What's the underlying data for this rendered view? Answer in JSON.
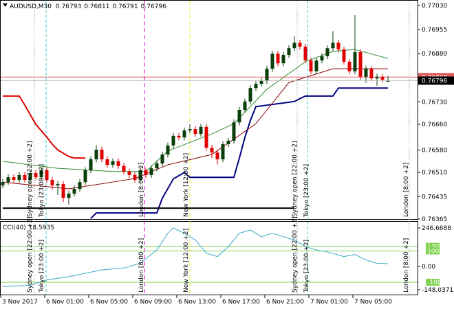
{
  "chart_data": {
    "type": "candlestick",
    "symbol": "AUDUSD,M30",
    "up_color": "#0a3f0a",
    "down_color": "#e00000",
    "open": [
      0.7647,
      0.7648,
      0.76495,
      0.76487,
      0.76502,
      0.76487,
      0.76508,
      0.76495,
      0.76517,
      0.76487,
      0.7647,
      0.76474,
      0.76431,
      0.76444,
      0.76459,
      0.7648,
      0.76517,
      0.76551,
      0.76581,
      0.76551,
      0.76534,
      0.76545,
      0.7653,
      0.76513,
      0.76502,
      0.76487,
      0.76517,
      0.76502,
      0.76523,
      0.76538,
      0.76566,
      0.76594,
      0.76624,
      0.76619,
      0.76641,
      0.76645,
      0.7663,
      0.76652,
      0.76587,
      0.76572,
      0.76551,
      0.76598,
      0.76609,
      0.76666,
      0.76705,
      0.76731,
      0.76773,
      0.76786,
      0.76795,
      0.76833,
      0.7688,
      0.7685,
      0.76876,
      0.76897,
      0.76914,
      0.76902,
      0.76859,
      0.76825,
      0.76859,
      0.76872,
      0.76897,
      0.76914,
      0.76893,
      0.76855,
      0.76825,
      0.76885,
      0.76808,
      0.76833,
      0.76803,
      0.76808,
      0.76793
    ],
    "high": [
      0.76489,
      0.76504,
      0.76504,
      0.76511,
      0.76511,
      0.76517,
      0.76517,
      0.76526,
      0.76526,
      0.76496,
      0.76483,
      0.76483,
      0.76453,
      0.7647,
      0.76489,
      0.76526,
      0.7656,
      0.76595,
      0.7659,
      0.7656,
      0.76554,
      0.76554,
      0.76539,
      0.76522,
      0.76511,
      0.76526,
      0.76526,
      0.76532,
      0.76547,
      0.76575,
      0.76603,
      0.76633,
      0.76633,
      0.7665,
      0.7666,
      0.76654,
      0.76661,
      0.76661,
      0.76596,
      0.76581,
      0.76607,
      0.76618,
      0.76675,
      0.76714,
      0.7674,
      0.76782,
      0.76795,
      0.76804,
      0.76842,
      0.76889,
      0.76889,
      0.76885,
      0.76906,
      0.76935,
      0.76923,
      0.76911,
      0.76868,
      0.76868,
      0.76881,
      0.76906,
      0.7695,
      0.76923,
      0.76902,
      0.76864,
      0.77,
      0.76894,
      0.76842,
      0.76842,
      0.76817,
      0.76817,
      0.76811
    ],
    "low": [
      0.76461,
      0.76471,
      0.76478,
      0.76478,
      0.76478,
      0.76478,
      0.76486,
      0.76486,
      0.76478,
      0.76455,
      0.7644,
      0.76418,
      0.7641,
      0.76435,
      0.7645,
      0.76471,
      0.76508,
      0.76542,
      0.76542,
      0.76525,
      0.76525,
      0.76521,
      0.76504,
      0.76493,
      0.76478,
      0.76478,
      0.76493,
      0.76493,
      0.76514,
      0.76529,
      0.76557,
      0.76585,
      0.7661,
      0.7661,
      0.76632,
      0.76621,
      0.76621,
      0.76578,
      0.76555,
      0.76535,
      0.76542,
      0.76589,
      0.766,
      0.76657,
      0.76696,
      0.76722,
      0.76764,
      0.76777,
      0.76786,
      0.76824,
      0.76841,
      0.76841,
      0.76867,
      0.76888,
      0.76893,
      0.7685,
      0.76816,
      0.76816,
      0.7685,
      0.76863,
      0.76888,
      0.76884,
      0.76846,
      0.76816,
      0.76816,
      0.76799,
      0.7679,
      0.76794,
      0.7678,
      0.7679,
      0.76791
    ],
    "close": [
      0.7648,
      0.76495,
      0.76487,
      0.76502,
      0.76487,
      0.76508,
      0.76495,
      0.76517,
      0.76487,
      0.7647,
      0.76474,
      0.76431,
      0.76444,
      0.76459,
      0.7648,
      0.76517,
      0.76551,
      0.76581,
      0.76551,
      0.76534,
      0.76545,
      0.7653,
      0.76513,
      0.76502,
      0.76487,
      0.76517,
      0.76502,
      0.76523,
      0.76538,
      0.76566,
      0.76594,
      0.76624,
      0.76619,
      0.76641,
      0.76645,
      0.7663,
      0.76652,
      0.76587,
      0.76572,
      0.76551,
      0.76598,
      0.76609,
      0.76666,
      0.76705,
      0.76731,
      0.76773,
      0.76786,
      0.76795,
      0.76833,
      0.7688,
      0.7685,
      0.76876,
      0.76897,
      0.76914,
      0.76902,
      0.76859,
      0.76825,
      0.76859,
      0.76872,
      0.76897,
      0.76914,
      0.76893,
      0.76855,
      0.76825,
      0.76885,
      0.76808,
      0.76833,
      0.76803,
      0.76808,
      0.76799,
      0.76796
    ],
    "ylim": [
      0.76365,
      0.7703
    ],
    "yticks": [
      {
        "value": 0.7703,
        "label": "0.77030"
      },
      0.76955,
      {
        "value": 0.7688,
        "label": "0.76880"
      },
      {
        "value": 0.7673,
        "label": "0.76730"
      },
      {
        "value": 0.7666,
        "label": "0.76660"
      },
      {
        "value": 0.7658,
        "label": "0.76580"
      },
      {
        "value": 0.7651,
        "label": "0.76510"
      },
      0.76435,
      0.76365
    ],
    "x_labels": [
      "3 Nov 2017",
      "6 Nov 01:00",
      "6 Nov 05:00",
      "6 Nov 09:00",
      "6 Nov 13:00",
      "6 Nov 17:00",
      "6 Nov 21:00",
      "7 Nov 01:00",
      "7 Nov 05:00"
    ],
    "ask_line": {
      "value": 0.76807,
      "color": "#e05a5a"
    },
    "overlays": [
      {
        "color": "#e00000",
        "width": 2,
        "x": [
          0,
          3,
          4,
          5,
          6,
          7,
          8,
          9,
          10,
          11,
          12,
          13,
          15
        ],
        "values": [
          0.76748,
          0.76748,
          0.7672,
          0.7669,
          0.7666,
          0.7664,
          0.7662,
          0.76598,
          0.7658,
          0.7657,
          0.7656,
          0.76555,
          0.76555
        ]
      },
      {
        "color": "#000080",
        "width": 2,
        "x": [
          16,
          17,
          28,
          29,
          30,
          31,
          32,
          33,
          34,
          42,
          43,
          44,
          45,
          46,
          53,
          54,
          55,
          60,
          61,
          70
        ],
        "values": [
          0.76367,
          0.76384,
          0.76384,
          0.7643,
          0.7646,
          0.7649,
          0.765,
          0.7651,
          0.76495,
          0.76495,
          0.76555,
          0.76619,
          0.76672,
          0.76715,
          0.76731,
          0.7674,
          0.76748,
          0.76748,
          0.76773,
          0.76773
        ]
      },
      {
        "color": "#000000",
        "width": 2,
        "x": [
          0,
          53
        ],
        "values": [
          0.76399,
          0.76399
        ]
      },
      {
        "color": "#2e8b2e",
        "width": 1,
        "x": [
          0,
          10,
          20,
          26,
          30,
          38,
          42,
          48,
          55,
          60,
          64,
          70
        ],
        "values": [
          0.76545,
          0.76523,
          0.76513,
          0.76513,
          0.76577,
          0.7663,
          0.76662,
          0.76769,
          0.76855,
          0.76887,
          0.76893,
          0.76865
        ]
      },
      {
        "color": "#8b0000",
        "width": 1,
        "x": [
          0,
          12,
          24,
          30,
          38,
          46,
          52,
          60,
          70
        ],
        "values": [
          0.7648,
          0.76459,
          0.76491,
          0.76534,
          0.76566,
          0.76662,
          0.7679,
          0.76833,
          0.76833
        ]
      }
    ],
    "sessions": [
      "Sydney open [22:00 +2]",
      "Tokyo [23:00 +2]",
      "London [8:00 +2]",
      "New York [12:00 +2]"
    ],
    "cci": {
      "title": "CCI(40)",
      "color": "#3aa6c9",
      "x": [
        0,
        5,
        8,
        12,
        15,
        18,
        22,
        25,
        28,
        30,
        31,
        33,
        35,
        37,
        39,
        41,
        43,
        45,
        47,
        49,
        51,
        53,
        55,
        57,
        59,
        62,
        64,
        66,
        68,
        70
      ],
      "values": [
        -128,
        -119,
        -85,
        -64,
        -43,
        -21,
        -9,
        21,
        106,
        213,
        247,
        213,
        170,
        85,
        64,
        128,
        213,
        234,
        191,
        213,
        191,
        170,
        128,
        106,
        94,
        64,
        77,
        43,
        21,
        18.5935
      ],
      "ylim": [
        -148.0371,
        246.6688
      ],
      "yticks": [
        246.6688,
        {
          "value": 0,
          "label": "0.00"
        },
        -148.0371
      ],
      "levels": [
        130,
        100,
        -100
      ],
      "level_color": "#7cd04a"
    }
  }
}
